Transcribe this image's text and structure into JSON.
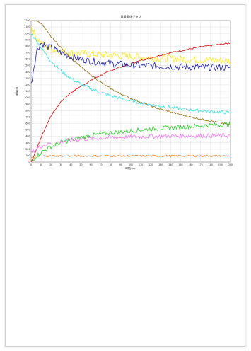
{
  "page": {
    "header_note": ""
  },
  "chart_data": {
    "type": "line",
    "title": "重量変化グラフ",
    "xlabel": "時間[sec]",
    "ylabel": "重量[g]",
    "xlim": [
      0,
      200
    ],
    "ylim": [
      0,
      2200
    ],
    "xticks": [
      0,
      10,
      20,
      30,
      40,
      50,
      60,
      70,
      80,
      90,
      100,
      110,
      120,
      130,
      140,
      150,
      160,
      170,
      180,
      190,
      200
    ],
    "yticks": [
      0,
      100,
      200,
      300,
      400,
      500,
      600,
      700,
      800,
      900,
      1000,
      1100,
      1200,
      1300,
      1400,
      1500,
      1600,
      1700,
      1800,
      1900,
      2000,
      2100,
      2200
    ],
    "grid": true,
    "series": [
      {
        "color": "#cc0000",
        "x": [
          0,
          5,
          10,
          15,
          20,
          30,
          40,
          50,
          60,
          70,
          80,
          90,
          100,
          110,
          120,
          130,
          140,
          150,
          160,
          170,
          180,
          190,
          200
        ],
        "y": [
          0,
          180,
          380,
          560,
          720,
          940,
          1080,
          1180,
          1270,
          1350,
          1420,
          1480,
          1530,
          1580,
          1620,
          1660,
          1700,
          1730,
          1760,
          1790,
          1810,
          1830,
          1850
        ]
      },
      {
        "color": "#ffeb1a",
        "x": [
          0,
          5,
          10,
          15,
          20,
          30,
          40,
          50,
          60,
          70,
          80,
          90,
          100,
          110,
          120,
          130,
          140,
          150,
          160,
          170,
          180,
          190,
          200
        ],
        "y": [
          2100,
          1950,
          1850,
          1780,
          1760,
          1720,
          1700,
          1690,
          1680,
          1670,
          1660,
          1650,
          1640,
          1630,
          1625,
          1615,
          1610,
          1600,
          1595,
          1590,
          1585,
          1580,
          1575
        ]
      },
      {
        "color": "#1a1aaa",
        "x": [
          0,
          3,
          6,
          10,
          15,
          20,
          30,
          40,
          50,
          60,
          70,
          80,
          90,
          100,
          110,
          120,
          130,
          140,
          150,
          160,
          170,
          180,
          190,
          200
        ],
        "y": [
          1200,
          1500,
          1750,
          1850,
          1800,
          1780,
          1700,
          1640,
          1600,
          1570,
          1550,
          1530,
          1520,
          1510,
          1500,
          1495,
          1490,
          1485,
          1480,
          1478,
          1475,
          1472,
          1470,
          1468
        ]
      },
      {
        "color": "#33dddd",
        "x": [
          0,
          5,
          10,
          15,
          20,
          30,
          40,
          50,
          60,
          70,
          80,
          90,
          100,
          110,
          120,
          130,
          140,
          150,
          160,
          170,
          180,
          190,
          200
        ],
        "y": [
          2000,
          1900,
          1780,
          1670,
          1570,
          1420,
          1300,
          1210,
          1140,
          1080,
          1030,
          990,
          950,
          920,
          890,
          870,
          850,
          830,
          810,
          800,
          785,
          775,
          765
        ]
      },
      {
        "color": "#8b6b14",
        "x": [
          0,
          5,
          10,
          15,
          20,
          30,
          40,
          50,
          60,
          70,
          80,
          90,
          100,
          110,
          120,
          130,
          140,
          150,
          160,
          170,
          180,
          190,
          200
        ],
        "y": [
          2200,
          2200,
          2160,
          2050,
          1950,
          1780,
          1620,
          1480,
          1350,
          1240,
          1140,
          1060,
          990,
          930,
          870,
          820,
          780,
          740,
          700,
          670,
          640,
          610,
          580
        ]
      },
      {
        "color": "#22cc22",
        "x": [
          0,
          5,
          10,
          15,
          20,
          30,
          40,
          50,
          60,
          70,
          80,
          90,
          100,
          110,
          120,
          130,
          140,
          150,
          160,
          170,
          180,
          190,
          200
        ],
        "y": [
          0,
          90,
          150,
          200,
          240,
          300,
          345,
          380,
          410,
          435,
          455,
          470,
          485,
          500,
          515,
          525,
          535,
          545,
          555,
          565,
          575,
          580,
          590
        ]
      },
      {
        "color": "#ee77ee",
        "x": [
          0,
          5,
          10,
          15,
          20,
          30,
          40,
          50,
          60,
          70,
          80,
          90,
          100,
          110,
          120,
          130,
          140,
          150,
          160,
          170,
          180,
          190,
          200
        ],
        "y": [
          150,
          200,
          250,
          270,
          290,
          320,
          340,
          355,
          365,
          375,
          380,
          385,
          390,
          395,
          400,
          400,
          405,
          405,
          410,
          410,
          410,
          412,
          412
        ]
      },
      {
        "color": "#ee8833",
        "x": [
          0,
          5,
          10,
          15,
          20,
          30,
          40,
          50,
          60,
          70,
          80,
          90,
          100,
          110,
          120,
          130,
          140,
          150,
          160,
          170,
          180,
          190,
          200
        ],
        "y": [
          60,
          80,
          90,
          95,
          95,
          95,
          95,
          95,
          95,
          95,
          95,
          95,
          95,
          95,
          95,
          95,
          95,
          95,
          95,
          95,
          95,
          95,
          95
        ]
      }
    ]
  }
}
